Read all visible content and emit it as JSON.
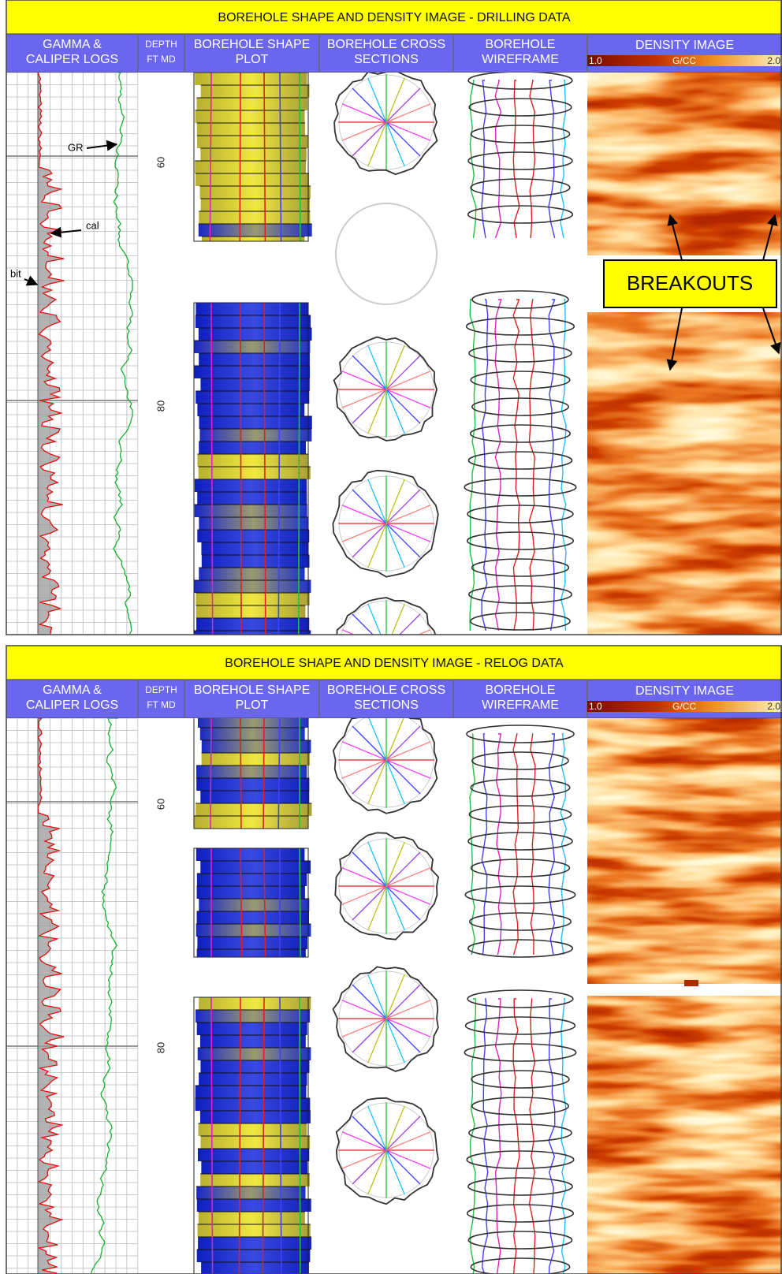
{
  "panels": [
    {
      "title": "BOREHOLE SHAPE AND DENSITY IMAGE - DRILLING DATA",
      "columns": [
        [
          "GAMMA &",
          "CALIPER LOGS"
        ],
        [
          "DEPTH",
          "FT MD"
        ],
        [
          "BOREHOLE SHAPE",
          "PLOT"
        ],
        [
          "BOREHOLE CROSS",
          "SECTIONS"
        ],
        [
          "BOREHOLE",
          "WIREFRAME"
        ],
        [
          "DENSITY IMAGE"
        ]
      ],
      "density_scale": [
        "1.0",
        "G/CC",
        "2.0"
      ],
      "depths": [
        "60",
        "80"
      ],
      "annotations": [
        "GR",
        "cal",
        "bit",
        "BREAKOUTS"
      ]
    },
    {
      "title": "BOREHOLE SHAPE AND DENSITY IMAGE - RELOG DATA",
      "columns": [
        [
          "GAMMA &",
          "CALIPER LOGS"
        ],
        [
          "DEPTH",
          "FT MD"
        ],
        [
          "BOREHOLE SHAPE",
          "PLOT"
        ],
        [
          "BOREHOLE CROSS",
          "SECTIONS"
        ],
        [
          "BOREHOLE",
          "WIREFRAME"
        ],
        [
          "DENSITY IMAGE"
        ]
      ],
      "density_scale": [
        "1.0",
        "G/CC",
        "2.0"
      ],
      "depths": [
        "60",
        "80"
      ]
    }
  ]
}
